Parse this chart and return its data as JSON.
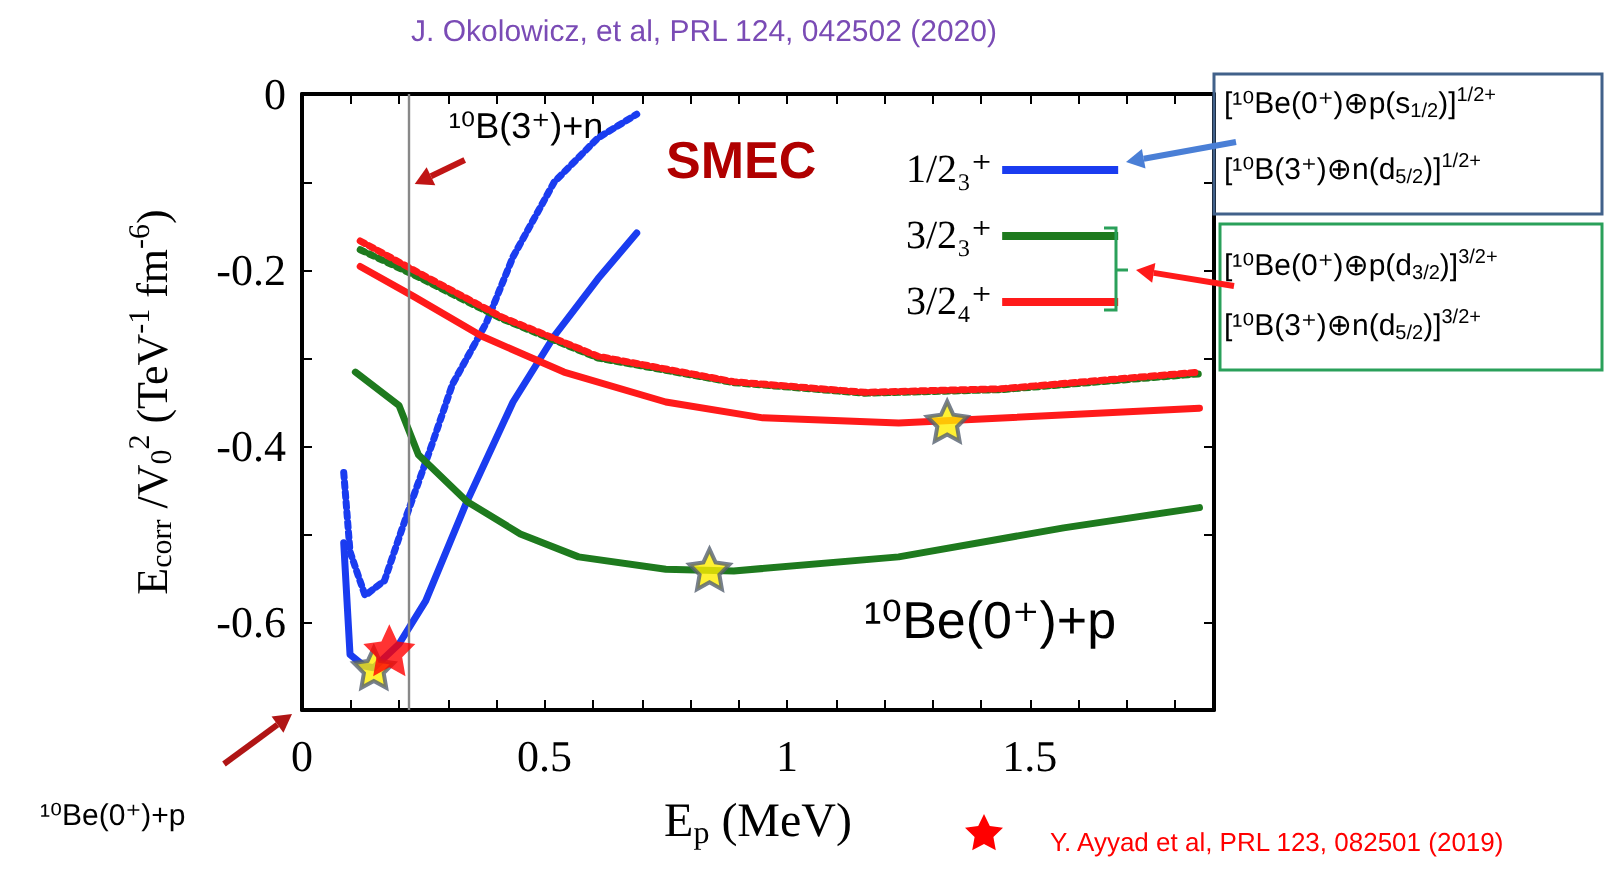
{
  "chart_data": {
    "type": "line",
    "xlabel": "E$_{p}$ (MeV)",
    "ylabel": "E$_{corr}$ /V$_{0}$$^{2}$ (TeV$^{-1}$ fm$^{-6}$)",
    "xlim": [
      0,
      1.88
    ],
    "ylim": [
      -0.7,
      0
    ],
    "xticks": [
      0,
      {
        "value": 0.1,
        "label": null
      },
      {
        "value": 0.2,
        "label": null
      },
      {
        "value": 0.3,
        "label": null
      },
      {
        "value": 0.4,
        "label": null
      },
      0.5,
      {
        "value": 0.6,
        "label": null
      },
      {
        "value": 0.7,
        "label": null
      },
      {
        "value": 0.8,
        "label": null
      },
      {
        "value": 0.9,
        "label": null
      },
      1,
      {
        "value": 1.1,
        "label": null
      },
      {
        "value": 1.2,
        "label": null
      },
      {
        "value": 1.3,
        "label": null
      },
      {
        "value": 1.4,
        "label": null
      },
      1.5,
      {
        "value": 1.6,
        "label": null
      },
      {
        "value": 1.7,
        "label": null
      },
      {
        "value": 1.8,
        "label": null
      }
    ],
    "yticks": [
      0,
      {
        "value": -0.1,
        "label": null
      },
      -0.2,
      {
        "value": -0.3,
        "label": null
      },
      -0.4,
      {
        "value": -0.5,
        "label": null
      },
      -0.6
    ],
    "grid": false,
    "legend": "top right",
    "series": [
      {
        "name": "1/2₃⁺",
        "color": "#1a3cf0",
        "line_style": "solid",
        "marker": "none",
        "x": [
          0.086,
          0.099,
          0.128,
          0.148,
          0.2,
          0.255,
          0.34,
          0.435,
          0.52,
          0.61,
          0.69
        ],
        "values": [
          -0.51,
          -0.637,
          -0.65,
          -0.652,
          -0.625,
          -0.576,
          -0.463,
          -0.35,
          -0.275,
          -0.21,
          -0.158
        ]
      },
      {
        "color": "#1a3cf0",
        "line_style": "dotted",
        "marker": "none",
        "x": [
          0.086,
          0.099,
          0.13,
          0.17,
          0.215,
          0.27,
          0.31,
          0.38,
          0.435,
          0.52,
          0.61,
          0.69
        ],
        "values": [
          -0.43,
          -0.52,
          -0.57,
          -0.553,
          -0.48,
          -0.395,
          -0.33,
          -0.26,
          -0.185,
          -0.1,
          -0.05,
          -0.023
        ]
      },
      {
        "name": "3/2₃⁺",
        "color": "#1e7a1e",
        "line_style": "solid",
        "marker": "none",
        "x": [
          0.11,
          0.2,
          0.24,
          0.34,
          0.45,
          0.57,
          0.75,
          0.89,
          1.23,
          1.57,
          1.85
        ],
        "values": [
          -0.316,
          -0.354,
          -0.41,
          -0.463,
          -0.5,
          -0.526,
          -0.54,
          -0.542,
          -0.526,
          -0.493,
          -0.47
        ]
      },
      {
        "color": "#1e7a1e",
        "line_style": "dotted",
        "marker": "none",
        "x": [
          0.12,
          0.24,
          0.41,
          0.61,
          0.89,
          1.16,
          1.44,
          1.85
        ],
        "values": [
          -0.177,
          -0.208,
          -0.255,
          -0.3,
          -0.328,
          -0.34,
          -0.336,
          -0.318
        ]
      },
      {
        "name": "3/2₄⁺",
        "color": "#ff1a1a",
        "line_style": "solid",
        "marker": "none",
        "x": [
          0.12,
          0.23,
          0.37,
          0.54,
          0.75,
          0.95,
          1.23,
          1.85
        ],
        "values": [
          -0.196,
          -0.23,
          -0.275,
          -0.316,
          -0.35,
          -0.368,
          -0.374,
          -0.357
        ]
      },
      {
        "color": "#ff1a1a",
        "line_style": "dotted",
        "marker": "none",
        "x": [
          0.12,
          0.24,
          0.41,
          0.61,
          0.89,
          1.16,
          1.44,
          1.85
        ],
        "values": [
          -0.167,
          -0.203,
          -0.253,
          -0.298,
          -0.327,
          -0.339,
          -0.335,
          -0.316
        ]
      },
      {
        "type": "scatter",
        "color": "#ffee00",
        "marker": "star",
        "x": [
          0.148,
          0.84,
          1.33
        ],
        "values": [
          -0.652,
          -0.54,
          -0.372
        ]
      },
      {
        "type": "scatter",
        "name": "Y. Ayyad et al, PRL 123, 082501 (2019)",
        "color": "#ff0000",
        "marker": "star",
        "x": [
          0.18
        ],
        "values": [
          -0.632
        ]
      }
    ],
    "ref_lines": [
      {
        "axis": "x",
        "value": 0.22,
        "label": "¹⁰B(3⁺)+n",
        "color": "#888888"
      }
    ],
    "annotations": [
      "J. Okolowicz, et al, PRL 124, 042502 (2020)",
      "SMEC",
      "¹⁰Be(0⁺)+p",
      "¹⁰Be(0⁺)+p",
      "[¹⁰Be(0⁺)⊕p(s$_{1/2}$)]$^{1/2+}$",
      "[¹⁰B(3⁺)⊕n(d$_{5/2}$)]$^{1/2+}$",
      "[¹⁰Be(0⁺)⊕p(d$_{3/2}$)]$^{3/2+}$",
      "[¹⁰B(3⁺)⊕n(d$_{5/2}$)]$^{3/2+}$"
    ]
  }
}
